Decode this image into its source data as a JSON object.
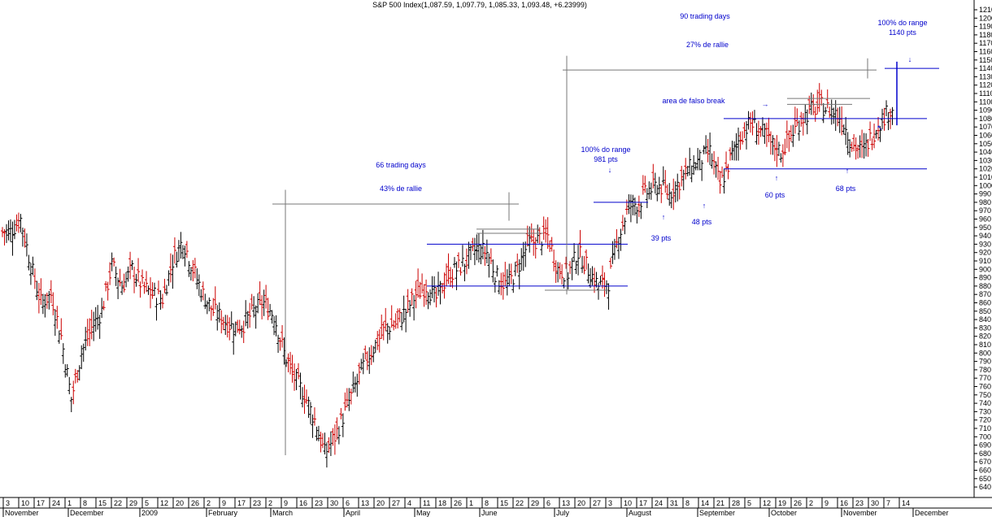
{
  "chart_data": {
    "type": "ohlc",
    "title": "S&P 500 Index(1,087.59, 1,097.79, 1,085.33, 1,093.48, +6.23999)",
    "ylim": [
      640,
      1215
    ],
    "y_ticks": [
      640,
      650,
      660,
      670,
      680,
      690,
      700,
      710,
      720,
      730,
      740,
      750,
      760,
      770,
      780,
      790,
      800,
      810,
      820,
      830,
      840,
      850,
      860,
      870,
      880,
      890,
      900,
      910,
      920,
      930,
      940,
      950,
      960,
      970,
      980,
      990,
      1000,
      1010,
      1020,
      1030,
      1040,
      1050,
      1060,
      1070,
      1080,
      1090,
      1100,
      1110,
      1120,
      1130,
      1140,
      1150,
      1160,
      1170,
      1180,
      1190,
      1200,
      1210
    ],
    "x_day_ticks": [
      "3",
      "10",
      "17",
      "24",
      "1",
      "8",
      "15",
      "22",
      "29",
      "5",
      "12",
      "20",
      "26",
      "2",
      "9",
      "17",
      "23",
      "2",
      "9",
      "16",
      "23",
      "30",
      "6",
      "13",
      "20",
      "27",
      "4",
      "11",
      "18",
      "26",
      "1",
      "8",
      "15",
      "22",
      "29",
      "6",
      "13",
      "20",
      "27",
      "3",
      "10",
      "17",
      "24",
      "31",
      "8",
      "14",
      "21",
      "28",
      "5",
      "12",
      "19",
      "26",
      "2",
      "9",
      "16",
      "23",
      "30",
      "7",
      "14"
    ],
    "x_month_ticks": [
      "November",
      "December",
      "2009",
      "February",
      "March",
      "April",
      "May",
      "June",
      "July",
      "August",
      "September",
      "October",
      "November",
      "December"
    ],
    "up_color": "#000000",
    "down_color": "#cc0000",
    "annotation_color": "#0000cc",
    "bars_weekly_close": [
      945,
      960,
      905,
      860,
      870,
      820,
      745,
      800,
      830,
      850,
      905,
      880,
      900,
      880,
      870,
      865,
      910,
      935,
      900,
      870,
      850,
      840,
      830,
      835,
      850,
      860,
      845,
      800,
      770,
      750,
      720,
      680,
      700,
      730,
      760,
      790,
      810,
      830,
      835,
      850,
      870,
      880,
      865,
      890,
      900,
      910,
      925,
      920,
      890,
      880,
      900,
      930,
      935,
      940,
      900,
      895,
      920,
      900,
      880,
      885,
      940,
      975,
      980,
      995,
      1000,
      990,
      1005,
      1020,
      1030,
      1040,
      1000,
      1030,
      1060,
      1075,
      1065,
      1050,
      1040,
      1060,
      1080,
      1090,
      1095,
      1090,
      1080,
      1050,
      1040,
      1060,
      1080,
      1093
    ],
    "annotations": [
      {
        "text": "66 trading days"
      },
      {
        "text": "43% de rallie"
      },
      {
        "text": "90 trading days"
      },
      {
        "text": "27% de rallie"
      },
      {
        "text": "100% do range"
      },
      {
        "text": "981 pts"
      },
      {
        "text": "100% do range"
      },
      {
        "text": "1140 pts"
      },
      {
        "text": "area de falso break"
      },
      {
        "text": "39 pts"
      },
      {
        "text": "48 pts"
      },
      {
        "text": "60 pts"
      },
      {
        "text": "68 pts"
      }
    ],
    "hlines_blue": [
      930,
      880,
      980,
      1080,
      1020,
      1140
    ],
    "grid": false
  }
}
